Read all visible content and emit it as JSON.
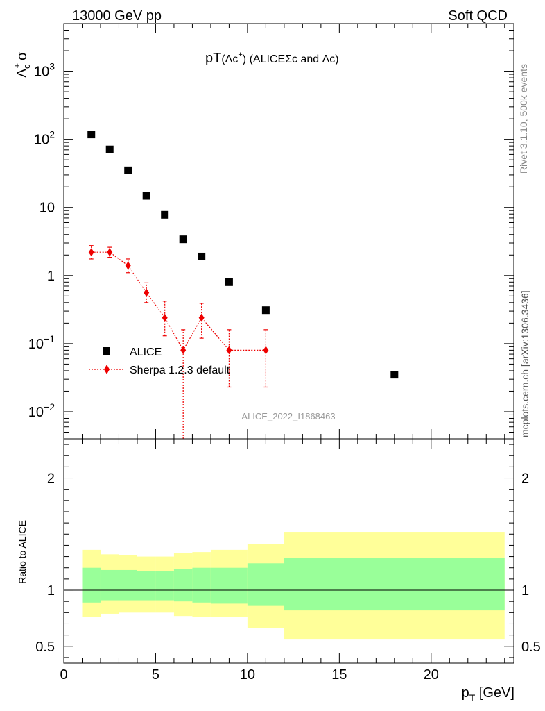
{
  "header": {
    "left": "13000 GeV pp",
    "right": "Soft QCD"
  },
  "side_labels": {
    "rivet": "Rivet 3.1.10,  500k events",
    "mcplots": "mcplots.cern.ch [arXiv:1306.3436]"
  },
  "chart_data": [
    {
      "type": "scatter",
      "title_main": "pT",
      "title_paren": "(Λc",
      "title_sup": "+",
      "title_close": ")",
      "title_rest": " (ALICEΣc and Λc)",
      "ylabel_main": "Λ",
      "ylabel_sup": "+",
      "ylabel_sub": "c",
      "ylabel_tail": " σ",
      "yscale": "log",
      "ylim": [
        0.004,
        5000
      ],
      "xlim": [
        0,
        24.5
      ],
      "yticks": [
        {
          "value": 1000,
          "base": "10",
          "exp": "3"
        },
        {
          "value": 100,
          "base": "10",
          "exp": "2"
        },
        {
          "value": 10,
          "base": "10",
          "exp": ""
        },
        {
          "value": 1,
          "base": "1",
          "exp": ""
        },
        {
          "value": 0.1,
          "base": "10",
          "exp": "−1"
        },
        {
          "value": 0.01,
          "base": "10",
          "exp": "−2"
        }
      ],
      "analysis_label": "ALICE_2022_I1868463",
      "legend": {
        "placement": "bottom-left",
        "entries": [
          "ALICE",
          "Sherpa 1.2.3 default"
        ]
      },
      "series": [
        {
          "name": "ALICE",
          "color": "#000000",
          "marker": "square",
          "x": [
            1.5,
            2.5,
            3.5,
            4.5,
            5.5,
            6.5,
            7.5,
            9.0,
            11.0,
            18.0
          ],
          "y": [
            118,
            71,
            35,
            14.8,
            7.8,
            3.4,
            1.9,
            0.8,
            0.31,
            0.035
          ]
        },
        {
          "name": "Sherpa 1.2.3 default",
          "color": "#ee0000",
          "marker": "diamond",
          "line": "dotted",
          "x": [
            1.5,
            2.5,
            3.5,
            4.5,
            5.5,
            6.5,
            7.5,
            9.0,
            11.0
          ],
          "y": [
            2.2,
            2.2,
            1.4,
            0.56,
            0.24,
            0.08,
            0.24,
            0.08,
            0.08
          ],
          "yerr_low": [
            1.75,
            1.85,
            1.1,
            0.4,
            0.13,
            0.004,
            0.12,
            0.023,
            0.023
          ],
          "yerr_high": [
            2.75,
            2.6,
            1.75,
            0.78,
            0.42,
            0.16,
            0.39,
            0.16,
            0.16
          ]
        }
      ]
    },
    {
      "type": "area",
      "ylabel": "Ratio to ALICE",
      "ylim": [
        0.35,
        2.35
      ],
      "xlim": [
        0,
        24.5
      ],
      "xlabel_main": "p",
      "xlabel_sub": "T",
      "xlabel_tail": " [GeV]",
      "yticks": [
        0.5,
        1,
        2
      ],
      "ytick_labels": [
        "0.5",
        "1",
        "2"
      ],
      "xticks": [
        0,
        5,
        10,
        15,
        20
      ],
      "xtick_labels": [
        "0",
        "5",
        "10",
        "15",
        "20"
      ],
      "reference_line": 1,
      "bands": {
        "x_edges": [
          1,
          2,
          3,
          4,
          5,
          6,
          7,
          8,
          10,
          12,
          24
        ],
        "outer_color": "#ffff99",
        "inner_color": "#99ff99",
        "outer_low": [
          0.76,
          0.79,
          0.8,
          0.8,
          0.8,
          0.77,
          0.76,
          0.76,
          0.66,
          0.56
        ],
        "outer_high": [
          1.36,
          1.32,
          1.31,
          1.3,
          1.3,
          1.33,
          1.34,
          1.36,
          1.41,
          1.52
        ],
        "inner_low": [
          0.89,
          0.91,
          0.91,
          0.91,
          0.91,
          0.9,
          0.89,
          0.88,
          0.86,
          0.82
        ],
        "inner_high": [
          1.2,
          1.18,
          1.18,
          1.17,
          1.17,
          1.19,
          1.2,
          1.2,
          1.24,
          1.29
        ]
      }
    }
  ]
}
